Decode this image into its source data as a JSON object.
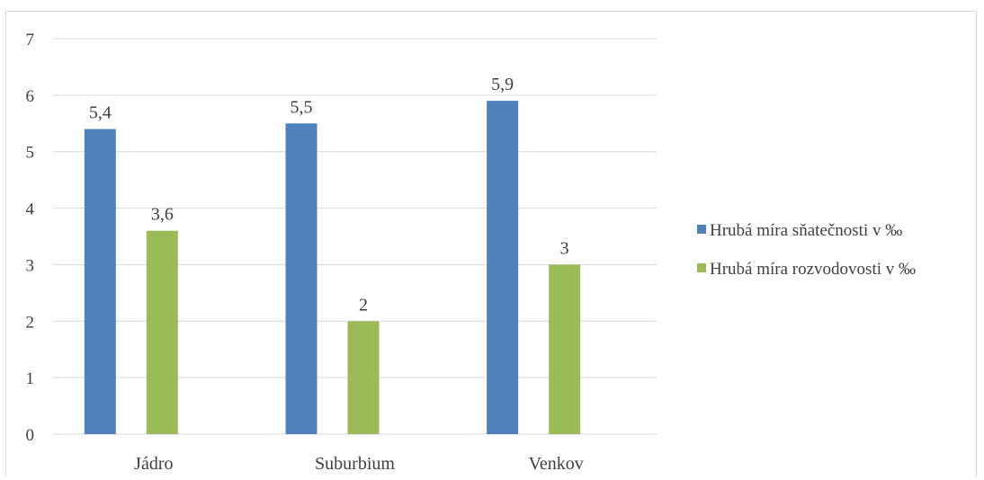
{
  "chart_data": {
    "type": "bar",
    "categories": [
      "Jádro",
      "Suburbium",
      "Venkov"
    ],
    "series": [
      {
        "name": "Hrubá míra sňatečnosti v ‰",
        "values": [
          5.4,
          5.5,
          5.9
        ],
        "labels": [
          "5,4",
          "5,5",
          "5,9"
        ],
        "color": "#4f81bd"
      },
      {
        "name": "Hrubá míra rozvodovosti v ‰",
        "values": [
          3.6,
          2,
          3
        ],
        "labels": [
          "3,6",
          "2",
          "3"
        ],
        "color": "#9bbb59"
      }
    ],
    "ylim": [
      0,
      7
    ],
    "yticks": [
      "0",
      "1",
      "2",
      "3",
      "4",
      "5",
      "6",
      "7"
    ],
    "grid": true,
    "legend": "right",
    "gridline_color": "#d9d9d9"
  }
}
